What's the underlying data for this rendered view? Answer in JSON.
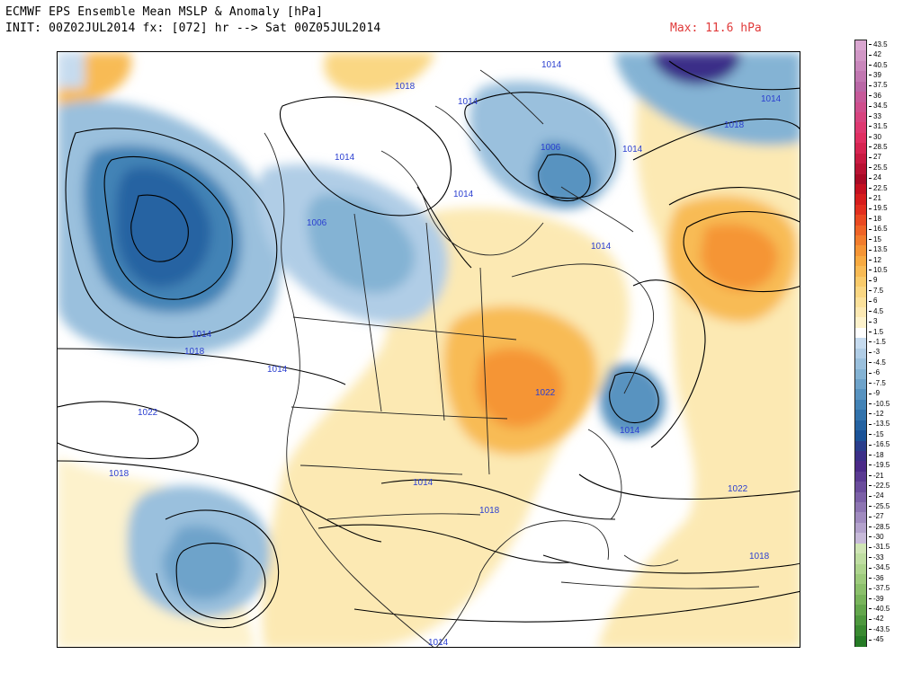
{
  "header": {
    "title_line1": "ECMWF EPS Ensemble Mean MSLP & Anomaly [hPa]",
    "title_line2": "INIT: 00Z02JUL2014 fx: [072] hr --> Sat 00Z05JUL2014",
    "max_label": "Max: 11.6 hPa"
  },
  "colorbar": {
    "labels": [
      "43.5",
      "42",
      "40.5",
      "39",
      "37.5",
      "36",
      "34.5",
      "33",
      "31.5",
      "30",
      "28.5",
      "27",
      "25.5",
      "24",
      "22.5",
      "21",
      "19.5",
      "18",
      "16.5",
      "15",
      "13.5",
      "12",
      "10.5",
      "9",
      "7.5",
      "6",
      "4.5",
      "3",
      "1.5",
      "-1.5",
      "-3",
      "-4.5",
      "-6",
      "-7.5",
      "-9",
      "-10.5",
      "-12",
      "-13.5",
      "-15",
      "-16.5",
      "-18",
      "-19.5",
      "-21",
      "-22.5",
      "-24",
      "-25.5",
      "-27",
      "-28.5",
      "-30",
      "-31.5",
      "-33",
      "-34.5",
      "-36",
      "-37.5",
      "-39",
      "-40.5",
      "-42",
      "-43.5",
      "-45"
    ],
    "colors": [
      "#d9a6d0",
      "#d197c6",
      "#c987bc",
      "#c177b1",
      "#b967a6",
      "#c65a9a",
      "#cf4f8d",
      "#d7447f",
      "#de3971",
      "#e02f62",
      "#d62451",
      "#c81a41",
      "#b81232",
      "#a80a25",
      "#c41020",
      "#d61d1d",
      "#e22f1f",
      "#ea4a22",
      "#ef6427",
      "#f27d2d",
      "#f59535",
      "#f7aa41",
      "#f8bb55",
      "#f9cb6b",
      "#fad783",
      "#fbe19b",
      "#fce9b3",
      "#fdf2cc",
      "#ffffff",
      "#c6dbef",
      "#b0cde6",
      "#9ac0dd",
      "#84b3d4",
      "#6ea3ca",
      "#5893c0",
      "#4383b6",
      "#3273ac",
      "#2563a2",
      "#1b5398",
      "#2a3e8c",
      "#3b2f88",
      "#4b2a88",
      "#5a3a92",
      "#6a4c9c",
      "#7b60a7",
      "#8d75b2",
      "#a08bbf",
      "#b3a2cc",
      "#c7bad9",
      "#cfe5b5",
      "#bfdea2",
      "#aed58e",
      "#9dcb7c",
      "#8bc06b",
      "#78b45b",
      "#63a64c",
      "#4e983e",
      "#3a8a31",
      "#267b26"
    ]
  },
  "map": {
    "isobar_labels": [
      {
        "text": "1018"
      },
      {
        "text": "1014"
      },
      {
        "text": "1014"
      },
      {
        "text": "1014"
      },
      {
        "text": "1014"
      },
      {
        "text": "1018"
      },
      {
        "text": "1014"
      },
      {
        "text": "1006"
      },
      {
        "text": "1014"
      },
      {
        "text": "1006"
      },
      {
        "text": "1014"
      },
      {
        "text": "1014"
      },
      {
        "text": "1018"
      },
      {
        "text": "1014"
      },
      {
        "text": "1022"
      },
      {
        "text": "1022"
      },
      {
        "text": "1014"
      },
      {
        "text": "1018"
      },
      {
        "text": "1014"
      },
      {
        "text": "1018"
      },
      {
        "text": "1022"
      },
      {
        "text": "1018"
      },
      {
        "text": "1014"
      }
    ]
  }
}
